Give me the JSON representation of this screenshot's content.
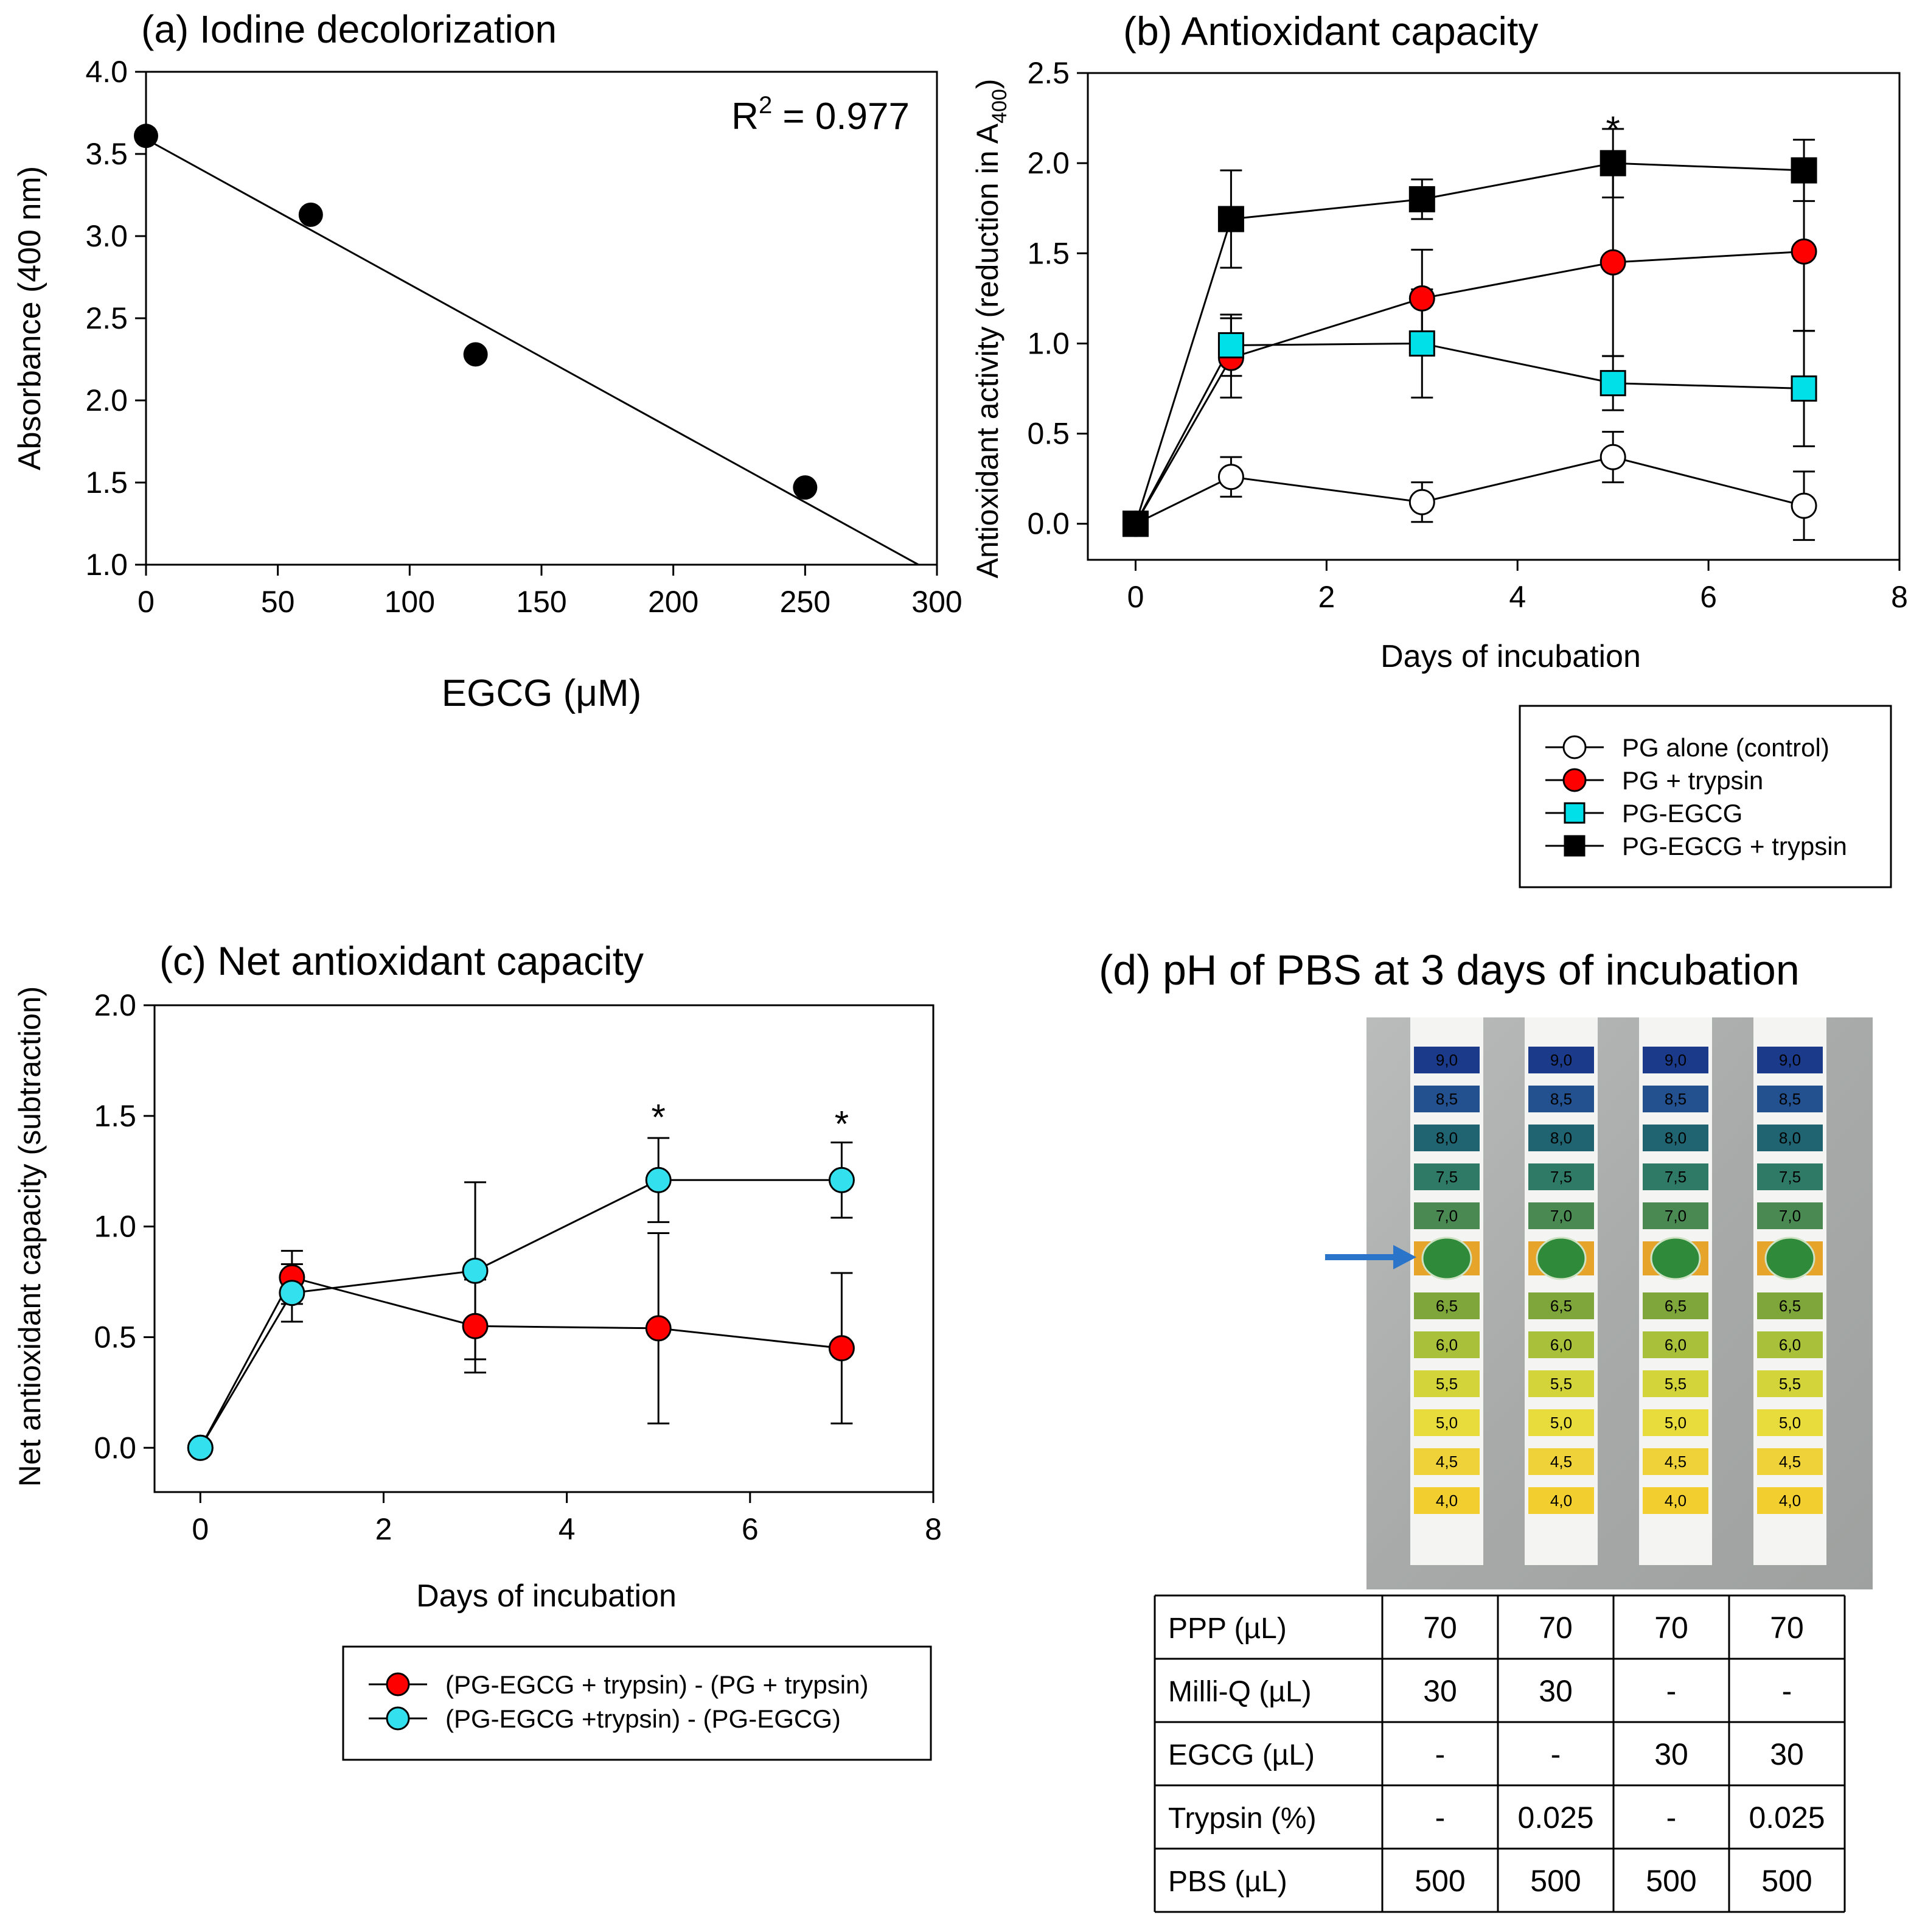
{
  "chart_data": [
    {
      "type": "scatter",
      "title": "(a) Iodine decolorization",
      "xlabel": "EGCG (μM)",
      "ylabel": "Absorbance (400 nm)",
      "xlim": [
        0,
        300
      ],
      "ylim": [
        1.0,
        4.0
      ],
      "xticks": [
        0,
        50,
        100,
        150,
        200,
        250,
        300
      ],
      "xtick_labels": [
        "0",
        "50",
        "100",
        "150",
        "200",
        "250",
        "300"
      ],
      "yticks": [
        1.0,
        1.5,
        2.0,
        2.5,
        3.0,
        3.5,
        4.0
      ],
      "ytick_labels": [
        "1.0",
        "1.5",
        "2.0",
        "2.5",
        "3.0",
        "3.5",
        "4.0"
      ],
      "points": [
        {
          "x": 0,
          "y": 3.61
        },
        {
          "x": 62.5,
          "y": 3.13
        },
        {
          "x": 125,
          "y": 2.28
        },
        {
          "x": 250,
          "y": 1.47
        }
      ],
      "fit": {
        "x0": 0,
        "y0": 3.59,
        "x1": 293,
        "y1": 1.0
      },
      "r2_prefix": "R",
      "r2_sup": "2",
      "r2_value": " = 0.977"
    },
    {
      "type": "line",
      "title": "(b) Antioxidant capacity",
      "xlabel": "Days of incubation",
      "ylabel_main": "Antioxidant activity (reduction in A",
      "ylabel_sub": "400",
      "ylabel_end": ")",
      "xlim": [
        -0.5,
        8
      ],
      "ylim": [
        -0.2,
        2.5
      ],
      "xticks": [
        0,
        2,
        4,
        6,
        8
      ],
      "xtick_labels": [
        "0",
        "2",
        "4",
        "6",
        "8"
      ],
      "yticks": [
        0.0,
        0.5,
        1.0,
        1.5,
        2.0,
        2.5
      ],
      "ytick_labels": [
        "0.0",
        "0.5",
        "1.0",
        "1.5",
        "2.0",
        "2.5"
      ],
      "x": [
        0,
        1,
        3,
        5,
        7
      ],
      "series": [
        {
          "name": "PG alone (control)",
          "marker": "circle",
          "color": "#ffffff",
          "values": [
            0.0,
            0.26,
            0.12,
            0.37,
            0.1
          ],
          "err": [
            0.0,
            0.11,
            0.11,
            0.14,
            0.19
          ]
        },
        {
          "name": "PG + trypsin",
          "marker": "circle",
          "color": "#ff0000",
          "values": [
            0.0,
            0.92,
            1.25,
            1.45,
            1.51
          ],
          "err": [
            0.0,
            0.22,
            0.27,
            0.52,
            0.44
          ]
        },
        {
          "name": "PG-EGCG",
          "marker": "square",
          "color": "#00e0e8",
          "values": [
            0.0,
            0.99,
            1.0,
            0.78,
            0.75
          ],
          "err": [
            0.0,
            0.17,
            0.3,
            0.15,
            0.32
          ]
        },
        {
          "name": "PG-EGCG + trypsin",
          "marker": "square",
          "color": "#000000",
          "values": [
            0.0,
            1.69,
            1.8,
            2.0,
            1.96
          ],
          "err": [
            0.0,
            0.27,
            0.11,
            0.19,
            0.17
          ]
        }
      ],
      "annotations": [
        {
          "x": 5,
          "y": 2.22,
          "text": "*"
        }
      ]
    },
    {
      "type": "line",
      "title": "(c) Net antioxidant capacity",
      "xlabel": "Days of incubation",
      "ylabel": "Net antioxidant capacity (subtraction)",
      "xlim": [
        -0.5,
        8
      ],
      "ylim": [
        -0.2,
        2.0
      ],
      "xticks": [
        0,
        2,
        4,
        6,
        8
      ],
      "xtick_labels": [
        "0",
        "2",
        "4",
        "6",
        "8"
      ],
      "yticks": [
        0.0,
        0.5,
        1.0,
        1.5,
        2.0
      ],
      "ytick_labels": [
        "0.0",
        "0.5",
        "1.0",
        "1.5",
        "2.0"
      ],
      "x": [
        0,
        1,
        3,
        5,
        7
      ],
      "series": [
        {
          "name": "(PG-EGCG + trypsin) - (PG + trypsin)",
          "marker": "circle",
          "color": "#ff0000",
          "values": [
            0.0,
            0.77,
            0.55,
            0.54,
            0.45
          ],
          "err": [
            0.0,
            0.12,
            0.21,
            0.43,
            0.34
          ]
        },
        {
          "name": "(PG-EGCG +trypsin) - (PG-EGCG)",
          "marker": "circle",
          "color": "#33e0ee",
          "values": [
            0.0,
            0.7,
            0.8,
            1.21,
            1.21
          ],
          "err": [
            0.0,
            0.13,
            0.4,
            0.19,
            0.17
          ]
        }
      ],
      "annotations": [
        {
          "x": 5,
          "y": 1.52,
          "text": "*"
        },
        {
          "x": 7,
          "y": 1.49,
          "text": "*"
        }
      ]
    },
    {
      "type": "table",
      "title": "(d) pH of PBS at 3 days of incubation",
      "strip_scale": [
        "9,0",
        "8,5",
        "8,0",
        "7,5",
        "7,0",
        "6,5",
        "6,0",
        "5,5",
        "5,0",
        "4,5",
        "4,0"
      ],
      "strip_colors": [
        "#1b3a8a",
        "#23508f",
        "#1f6470",
        "#2f7a66",
        "#4a8a52",
        "#7ea63a",
        "#a9c13a",
        "#d2d43a",
        "#e8dc3c",
        "#efd23a",
        "#f2cf2e"
      ],
      "pad_color": "#e6a52a",
      "spot_color": "#2f8a3a",
      "arrow_color": "#2a74c9",
      "rows": [
        {
          "label": "PPP  (µL)",
          "cells": [
            "70",
            "70",
            "70",
            "70"
          ]
        },
        {
          "label": "Milli-Q  (µL)",
          "cells": [
            "30",
            "30",
            "-",
            "-"
          ]
        },
        {
          "label": "EGCG  (µL)",
          "cells": [
            "-",
            "-",
            "30",
            "30"
          ]
        },
        {
          "label": "Trypsin  (%)",
          "cells": [
            "-",
            "0.025",
            "-",
            "0.025"
          ]
        },
        {
          "label": "PBS (µL)",
          "cells": [
            "500",
            "500",
            "500",
            "500"
          ]
        }
      ]
    }
  ]
}
